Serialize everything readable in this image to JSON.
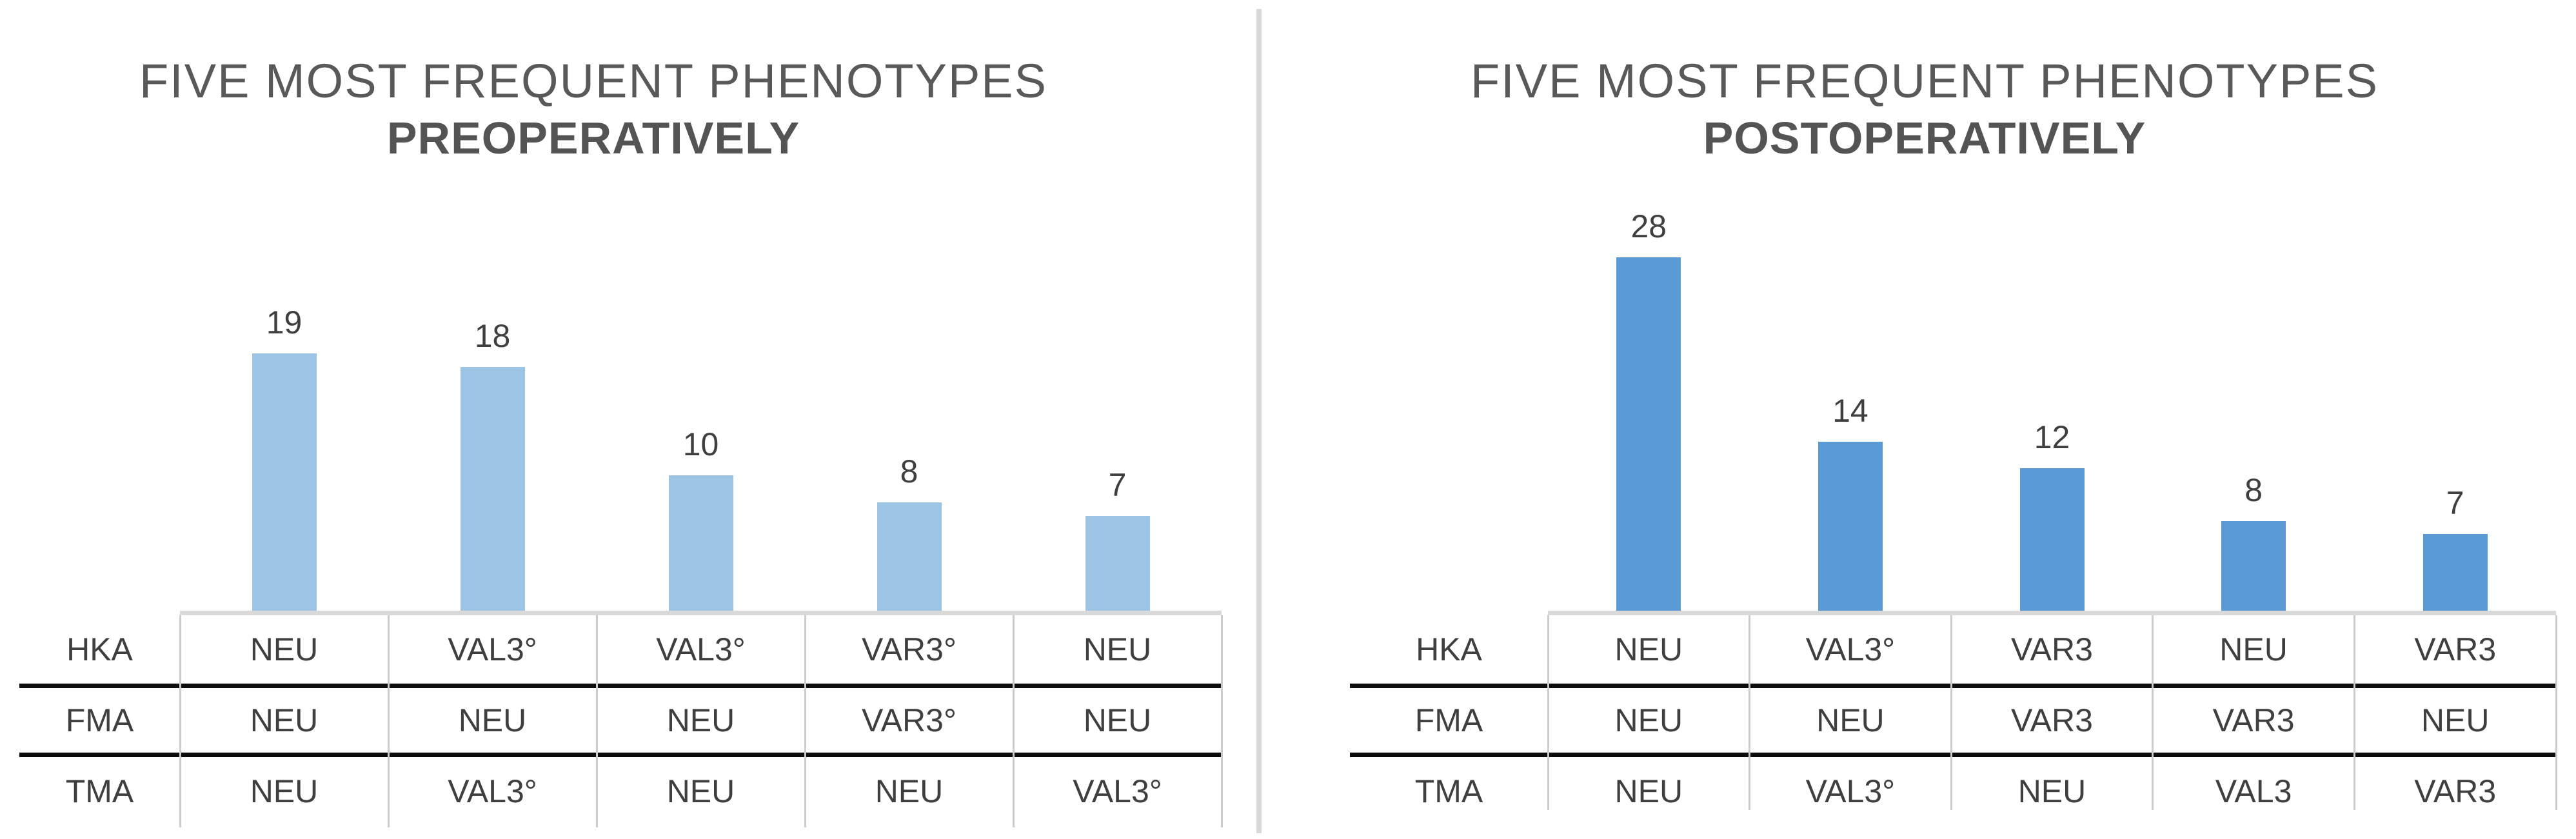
{
  "chart_data": [
    {
      "type": "bar",
      "title": "FIVE MOST FREQUENT PHENOTYPES",
      "subtitle": "PREOPERATIVELY",
      "values": [
        19,
        18,
        10,
        8,
        7
      ],
      "data_labels": [
        19,
        18,
        10,
        8,
        7
      ],
      "bar_color": "#9CC4E5",
      "legend": "none",
      "grid": false,
      "y_axis_visible": false,
      "value_labels_position": "above bars",
      "category_table": {
        "row_labels": [
          "HKA",
          "FMA",
          "TMA"
        ],
        "rows": [
          [
            "NEU",
            "VAL3°",
            "VAL3°",
            "VAR3°",
            "NEU"
          ],
          [
            "NEU",
            "NEU",
            "NEU",
            "VAR3°",
            "NEU"
          ],
          [
            "NEU",
            "VAL3°",
            "NEU",
            "NEU",
            "VAL3°"
          ]
        ]
      }
    },
    {
      "type": "bar",
      "title": "FIVE MOST FREQUENT PHENOTYPES",
      "subtitle": "POSTOPERATIVELY",
      "values": [
        28,
        14,
        12,
        8,
        7
      ],
      "data_labels": [
        28,
        14,
        12,
        8,
        7
      ],
      "bar_color": "#5B9BD5",
      "legend": "none",
      "grid": false,
      "y_axis_visible": false,
      "value_labels_position": "above bars",
      "category_table": {
        "row_labels": [
          "HKA",
          "FMA",
          "TMA"
        ],
        "rows": [
          [
            "NEU",
            "VAL3°",
            "VAR3",
            "NEU",
            "VAR3"
          ],
          [
            "NEU",
            "NEU",
            "VAR3",
            "VAR3",
            "NEU"
          ],
          [
            "NEU",
            "VAL3°",
            "NEU",
            "VAL3",
            "VAR3"
          ]
        ]
      }
    }
  ],
  "colors": {
    "bar_preoperative": "#9CC4E5",
    "bar_postoperative": "#5B9BD5",
    "title_text": "#595959",
    "label_text": "#3F3F3F",
    "axis_line": "#D9D9D9",
    "column_separator": "#CCCCCC",
    "row_divider": "#0D0D0D",
    "panel_divider": "#D9D9D9"
  }
}
